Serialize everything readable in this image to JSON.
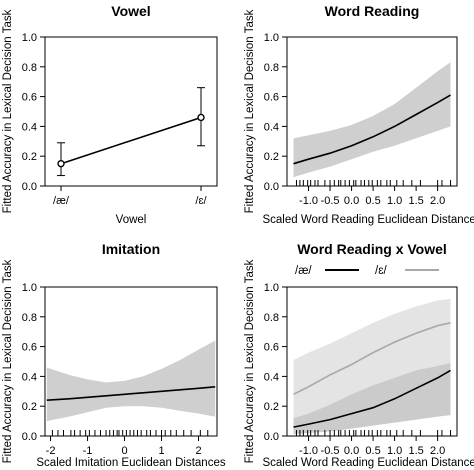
{
  "figure": {
    "ylabel_shared": "Fitted Accuracy in Lexical Decision Task"
  },
  "chart_data": [
    {
      "id": "vowel",
      "type": "line",
      "title": "Vowel",
      "xlabel": "Vowel",
      "ylabel": "Fitted Accuracy in Lexical Decision Task",
      "categories": [
        "/æ/",
        "/ɛ/"
      ],
      "values": [
        0.15,
        0.46
      ],
      "ci_lower": [
        0.07,
        0.27
      ],
      "ci_upper": [
        0.29,
        0.66
      ],
      "ylim": [
        0,
        1
      ],
      "yticks": [
        "0.0",
        "0.2",
        "0.4",
        "0.6",
        "0.8",
        "1.0"
      ]
    },
    {
      "id": "word-reading",
      "type": "line",
      "title": "Word Reading",
      "xlabel": "Scaled Word Reading Euclidean Distances",
      "ylabel": "Fitted Accuracy in Lexical Decision Task",
      "xlim": [
        -1.5,
        2.45
      ],
      "ylim": [
        0,
        1
      ],
      "xticks": [
        "-1.0",
        "-0.5",
        "0.0",
        "0.5",
        "1.0",
        "1.5",
        "2.0"
      ],
      "yticks": [
        "0.0",
        "0.2",
        "0.4",
        "0.6",
        "0.8",
        "1.0"
      ],
      "series": [
        {
          "x": [
            -1.35,
            -1.0,
            -0.5,
            0.0,
            0.5,
            1.0,
            1.5,
            2.0,
            2.3
          ],
          "y": [
            0.15,
            0.18,
            0.22,
            0.27,
            0.33,
            0.4,
            0.48,
            0.56,
            0.61
          ],
          "lower": [
            0.06,
            0.09,
            0.13,
            0.18,
            0.23,
            0.27,
            0.32,
            0.37,
            0.4
          ],
          "upper": [
            0.32,
            0.34,
            0.37,
            0.41,
            0.47,
            0.55,
            0.66,
            0.77,
            0.83
          ],
          "color": "#000000",
          "band_color": "#cfcfcf"
        }
      ],
      "rug": [
        -1.28,
        -1.2,
        -1.12,
        -1.02,
        -0.95,
        -0.85,
        -0.78,
        -0.62,
        -0.5,
        -0.4,
        -0.3,
        -0.25,
        -0.15,
        -0.05,
        0.05,
        0.1,
        0.22,
        0.3,
        0.4,
        0.48,
        0.6,
        0.68,
        0.82,
        0.9,
        1.05,
        1.2,
        1.4,
        1.6,
        2.0,
        2.1,
        2.3
      ]
    },
    {
      "id": "imitation",
      "type": "line",
      "title": "Imitation",
      "xlabel": "Scaled Imitation Euclidean Distances",
      "ylabel": "Fitted Accuracy in Lexical Decision Task",
      "xlim": [
        -2.15,
        2.5
      ],
      "ylim": [
        0,
        1
      ],
      "xticks": [
        "-2",
        "-1",
        "0",
        "1",
        "2"
      ],
      "yticks": [
        "0.0",
        "0.2",
        "0.4",
        "0.6",
        "0.8",
        "1.0"
      ],
      "series": [
        {
          "x": [
            -2.1,
            -1.5,
            -1.0,
            -0.5,
            0.0,
            0.5,
            1.0,
            1.5,
            2.0,
            2.45
          ],
          "y": [
            0.24,
            0.25,
            0.26,
            0.27,
            0.28,
            0.29,
            0.3,
            0.31,
            0.32,
            0.33
          ],
          "lower": [
            0.1,
            0.13,
            0.16,
            0.19,
            0.2,
            0.2,
            0.19,
            0.17,
            0.15,
            0.13
          ],
          "upper": [
            0.46,
            0.41,
            0.38,
            0.36,
            0.37,
            0.4,
            0.45,
            0.51,
            0.58,
            0.64
          ],
          "color": "#000000",
          "band_color": "#cfcfcf"
        }
      ],
      "rug": [
        -1.95,
        -1.8,
        -1.65,
        -1.45,
        -1.35,
        -1.2,
        -1.05,
        -0.95,
        -0.8,
        -0.65,
        -0.5,
        -0.4,
        -0.3,
        -0.2,
        -0.15,
        -0.05,
        0.05,
        0.15,
        0.25,
        0.35,
        0.45,
        0.6,
        0.7,
        0.85,
        1.0,
        1.1,
        1.25,
        1.4,
        1.6,
        1.8,
        2.05,
        2.25
      ]
    },
    {
      "id": "word-reading-x-vowel",
      "type": "line",
      "title": "Word Reading x Vowel",
      "xlabel": "Scaled Word Reading Euclidean Distances",
      "ylabel": "Fitted Accuracy in Lexical Decision Task",
      "xlim": [
        -1.5,
        2.45
      ],
      "ylim": [
        0,
        1
      ],
      "xticks": [
        "-1.0",
        "-0.5",
        "0.0",
        "0.5",
        "1.0",
        "1.5",
        "2.0"
      ],
      "yticks": [
        "0.0",
        "0.2",
        "0.4",
        "0.6",
        "0.8",
        "1.0"
      ],
      "legend_position": "top",
      "series": [
        {
          "name": "/æ/",
          "x": [
            -1.35,
            -1.0,
            -0.5,
            0.0,
            0.5,
            1.0,
            1.5,
            2.0,
            2.3
          ],
          "y": [
            0.06,
            0.08,
            0.11,
            0.15,
            0.19,
            0.25,
            0.32,
            0.39,
            0.44
          ],
          "lower": [
            0.01,
            0.02,
            0.03,
            0.05,
            0.07,
            0.09,
            0.11,
            0.13,
            0.14
          ],
          "upper": [
            0.26,
            0.27,
            0.28,
            0.31,
            0.37,
            0.47,
            0.6,
            0.7,
            0.76
          ],
          "color": "#000000",
          "band_color": "#b9b9b9"
        },
        {
          "name": "/ɛ/",
          "x": [
            -1.35,
            -1.0,
            -0.5,
            0.0,
            0.5,
            1.0,
            1.5,
            2.0,
            2.3
          ],
          "y": [
            0.28,
            0.33,
            0.41,
            0.48,
            0.56,
            0.63,
            0.69,
            0.74,
            0.76
          ],
          "lower": [
            0.12,
            0.15,
            0.21,
            0.28,
            0.34,
            0.39,
            0.44,
            0.47,
            0.49
          ],
          "upper": [
            0.51,
            0.56,
            0.62,
            0.69,
            0.76,
            0.82,
            0.87,
            0.91,
            0.92
          ],
          "color": "#a8a8a8",
          "band_color": "#e4e4e4"
        }
      ],
      "rug": [
        -1.28,
        -1.2,
        -1.12,
        -1.02,
        -0.95,
        -0.85,
        -0.78,
        -0.62,
        -0.5,
        -0.4,
        -0.3,
        -0.25,
        -0.15,
        -0.05,
        0.05,
        0.1,
        0.22,
        0.3,
        0.4,
        0.48,
        0.6,
        0.68,
        0.82,
        0.9,
        1.05,
        1.2,
        1.4,
        1.6,
        2.0,
        2.1,
        2.3
      ]
    }
  ]
}
